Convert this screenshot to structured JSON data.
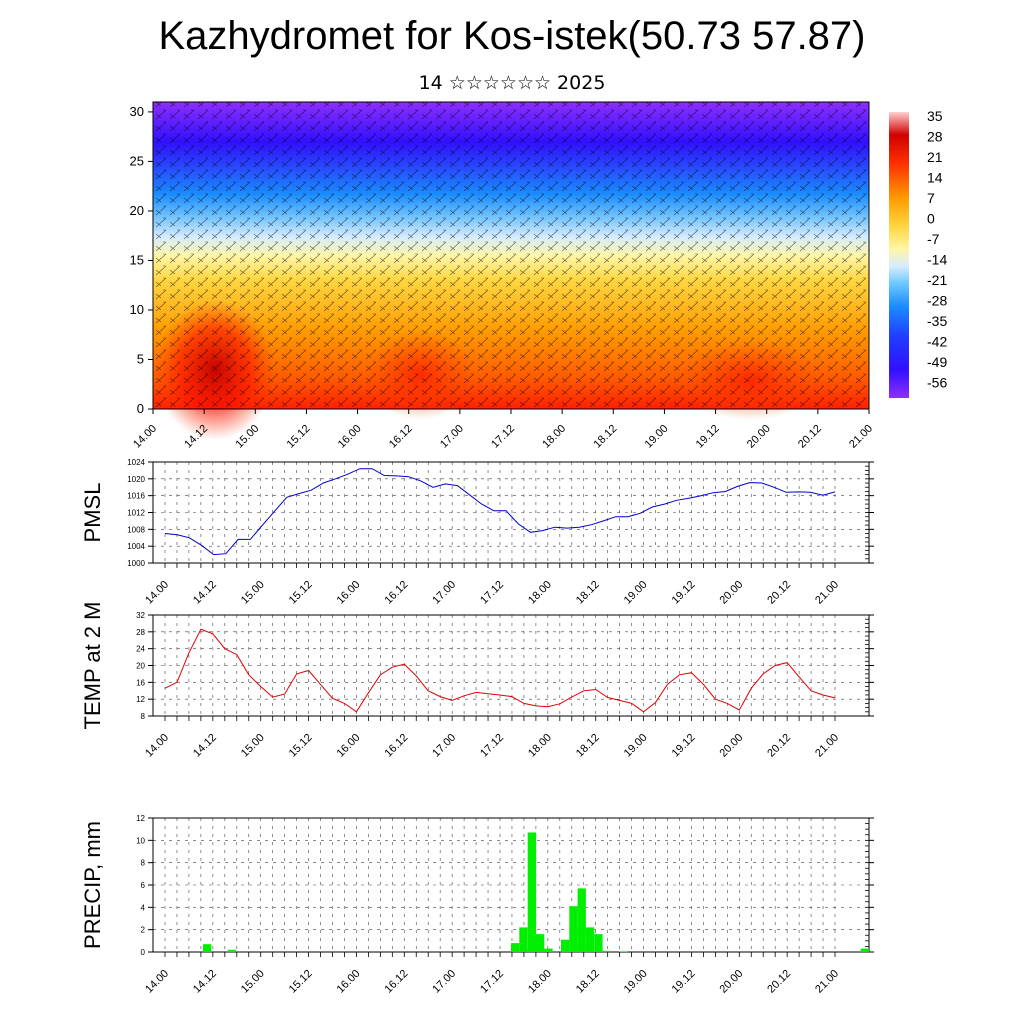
{
  "title": "Kazhydromet for Kos-istek(50.73 57.87)",
  "subtitle": "14 ☆☆☆☆☆☆ 2025",
  "colors": {
    "temp_line": "#e00000",
    "pmsl_line": "#0000cc",
    "precip_bar": "#00ee00",
    "grid": "#555555"
  },
  "time_labels": [
    "14.00",
    "14.12",
    "15.00",
    "15.12",
    "16.00",
    "16.12",
    "17.00",
    "17.12",
    "18.00",
    "18.12",
    "19.00",
    "19.12",
    "20.00",
    "20.12",
    "21.00"
  ],
  "chart_data": [
    {
      "type": "heatmap",
      "name": "cross-section",
      "x_labels": [
        "14.00",
        "14.12",
        "15.00",
        "15.12",
        "16.00",
        "16.12",
        "17.00",
        "17.12",
        "18.00",
        "18.12",
        "19.00",
        "19.12",
        "20.00",
        "20.12",
        "21.00"
      ],
      "y_ticks": [
        0,
        5,
        10,
        15,
        20,
        25,
        30
      ],
      "ylim": [
        0,
        31
      ],
      "colorbar_labels": [
        "35",
        "28",
        "21",
        "14",
        "7",
        "0",
        "-7",
        "-14",
        "-21",
        "-28",
        "-35",
        "-42",
        "-49",
        "-56"
      ],
      "colorbar_range": [
        -60,
        38
      ],
      "note_overlay": "wind barbs"
    },
    {
      "type": "line",
      "ylabel": "PMSL",
      "ylim": [
        1000,
        1024
      ],
      "y_ticks": [
        1000,
        1004,
        1008,
        1012,
        1016,
        1020,
        1024
      ],
      "x_labels": [
        "14.00",
        "14.12",
        "15.00",
        "15.12",
        "16.00",
        "16.12",
        "17.00",
        "17.12",
        "18.00",
        "18.12",
        "19.00",
        "19.12",
        "20.00",
        "20.12",
        "21.00"
      ],
      "series": [
        {
          "values": [
            1007,
            1006.7,
            1006,
            1004.2,
            1002,
            1002.2,
            1005.6,
            1005.6,
            1009,
            1012.3,
            1015.6,
            1016.5,
            1017.3,
            1019,
            1020,
            1021.1,
            1022.4,
            1022.4,
            1020.8,
            1020.7,
            1020.5,
            1019.5,
            1018,
            1018.8,
            1018.4,
            1016.2,
            1014,
            1012.4,
            1012.4,
            1009.3,
            1007.3,
            1007.7,
            1008.5,
            1008.3,
            1008.5,
            1009.1,
            1010,
            1011,
            1011,
            1011.8,
            1013.3,
            1014,
            1014.9,
            1015.4,
            1016,
            1016.7,
            1017,
            1018.2,
            1019.1,
            1019,
            1018,
            1016.8,
            1016.9,
            1016.8,
            1016.1,
            1016.9
          ]
        }
      ]
    },
    {
      "type": "line",
      "ylabel": "TEMP at 2 M",
      "ylim": [
        8,
        32
      ],
      "y_ticks": [
        8,
        12,
        16,
        20,
        24,
        28,
        32
      ],
      "x_labels": [
        "14.00",
        "14.12",
        "15.00",
        "15.12",
        "16.00",
        "16.12",
        "17.00",
        "17.12",
        "18.00",
        "18.12",
        "19.00",
        "19.12",
        "20.00",
        "20.12",
        "21.00"
      ],
      "series": [
        {
          "values": [
            14.6,
            16,
            23,
            28.6,
            27.5,
            24,
            22.6,
            17.8,
            15,
            12.5,
            13.2,
            18,
            18.8,
            15.5,
            12.2,
            11,
            9,
            13.5,
            17.8,
            19.6,
            20.3,
            17.5,
            14,
            12.6,
            11.7,
            12.8,
            13.6,
            13.3,
            13,
            12.6,
            11,
            10.4,
            10.2,
            10.9,
            12.5,
            14,
            14.3,
            12.4,
            11.7,
            11,
            9,
            11.2,
            15.5,
            17.8,
            18.3,
            15.5,
            12,
            11,
            9.4,
            14.6,
            18,
            20,
            20.7,
            17.3,
            14,
            13,
            12.3
          ]
        }
      ]
    },
    {
      "type": "bar",
      "ylabel": "PRECIP, mm",
      "ylim": [
        0,
        12
      ],
      "y_ticks": [
        0,
        2,
        4,
        6,
        8,
        10,
        12
      ],
      "x_labels": [
        "14.00",
        "14.12",
        "15.00",
        "15.12",
        "16.00",
        "16.12",
        "17.00",
        "17.12",
        "18.00",
        "18.12",
        "19.00",
        "19.12",
        "20.00",
        "20.12",
        "21.00"
      ],
      "values": [
        0,
        0,
        0,
        0,
        0,
        0,
        0.7,
        0,
        0,
        0.2,
        0,
        0,
        0,
        0,
        0,
        0,
        0,
        0,
        0,
        0,
        0,
        0,
        0,
        0,
        0,
        0,
        0,
        0,
        0,
        0,
        0,
        0,
        0,
        0,
        0,
        0,
        0,
        0,
        0,
        0,
        0,
        0,
        0,
        0.8,
        2.2,
        10.7,
        1.6,
        0.3,
        0,
        1.1,
        4.1,
        5.7,
        2.2,
        1.6,
        0.1,
        0,
        0.05,
        0,
        0,
        0,
        0,
        0,
        0,
        0,
        0,
        0,
        0,
        0,
        0,
        0,
        0,
        0,
        0,
        0,
        0,
        0,
        0,
        0,
        0,
        0,
        0,
        0,
        0,
        0,
        0,
        0.3
      ]
    }
  ]
}
